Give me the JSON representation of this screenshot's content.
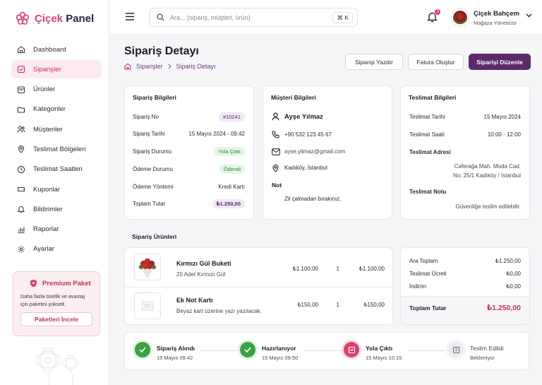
{
  "brand": {
    "name_part1": "Çiçek",
    "name_part2": " Panel",
    "accent": "#d9436b",
    "primary": "#5a2a6b"
  },
  "sidebar": {
    "items": [
      {
        "label": "Dashboard",
        "icon": "home-icon"
      },
      {
        "label": "Siparişler",
        "icon": "orders-icon",
        "active": true
      },
      {
        "label": "Ürünler",
        "icon": "box-icon"
      },
      {
        "label": "Kategoriler",
        "icon": "folder-icon"
      },
      {
        "label": "Müşteriler",
        "icon": "users-icon"
      },
      {
        "label": "Teslimat Bölgeleri",
        "icon": "map-pin-icon"
      },
      {
        "label": "Teslimat Saatleri",
        "icon": "clock-icon"
      },
      {
        "label": "Kuponlar",
        "icon": "ticket-icon"
      },
      {
        "label": "Bildirimler",
        "icon": "bell-icon"
      },
      {
        "label": "Raporlar",
        "icon": "chart-icon"
      },
      {
        "label": "Ayarlar",
        "icon": "gear-icon"
      }
    ],
    "promo": {
      "title": "Premium Paket",
      "text": "Daha fazla özellik ve avantaj için paketini yükselt.",
      "button": "Paketleri İncele"
    }
  },
  "topbar": {
    "search_placeholder": "Ara... (sipariş, müşteri, ürün)",
    "shortcut": "⌘ K",
    "notification_count": "3",
    "user_name": "Çiçek Bahçem",
    "user_role": "Mağaza Yöneticisi"
  },
  "page": {
    "title": "Sipariş Detayı",
    "breadcrumb": {
      "parent": "Siparişler",
      "current": "Sipariş Detayı"
    },
    "actions": {
      "print": "Siparişi Yazdır",
      "invoice": "Fatura Oluştur",
      "edit": "Siparişi Düzenle"
    }
  },
  "order_info": {
    "title": "Sipariş Bilgileri",
    "rows": [
      {
        "label": "Sipariş No",
        "value": "#10241"
      },
      {
        "label": "Sipariş Tarihi",
        "value": "15 Mayıs 2024 - 09:42"
      },
      {
        "label": "Sipariş Durumu",
        "value": "Yola Çıktı"
      },
      {
        "label": "Ödeme Durumu",
        "value": "Ödendi"
      },
      {
        "label": "Ödeme Yöntemi",
        "value": "Kredi Kartı"
      },
      {
        "label": "Toplam Tutar",
        "value": "₺1.250,00"
      }
    ]
  },
  "customer_info": {
    "title": "Müşteri Bilgileri",
    "name": "Ayşe Yılmaz",
    "phone": "+90 532 123 45 67",
    "email": "ayse.yilmaz@gmail.com",
    "location": "Kadıköy, İstanbul",
    "note_label": "Not",
    "note": "Zil çalmadan bırakınız."
  },
  "delivery_info": {
    "title": "Teslimat Bilgileri",
    "date_label": "Teslimat Tarihi",
    "date": "15 Mayıs 2024",
    "time_label": "Teslimat Saati",
    "time": "10:00 - 12:00",
    "address_label": "Teslimat Adresi",
    "address_line1": "Caferağa Mah. Moda Cad.",
    "address_line2": "No: 25/1 Kadıköy / İstanbul",
    "note_label": "Teslimat Notu",
    "note": "Güvenliğe teslim edilebilir."
  },
  "products": {
    "title": "Sipariş Ürünleri",
    "items": [
      {
        "name": "Kırmızı Gül Buketi",
        "desc": "20 Adet Kırmızı Gül",
        "price": "₺1.100,00",
        "qty": "1",
        "total": "₺1.100,00"
      },
      {
        "name": "Ek Not Kartı",
        "desc": "Beyaz kart üzerine yazı yazılacak.",
        "price": "₺150,00",
        "qty": "1",
        "total": "₺150,00"
      }
    ]
  },
  "summary": {
    "subtotal_label": "Ara Toplam",
    "subtotal": "₺1.250,00",
    "shipping_label": "Teslimat Ücreti",
    "shipping": "₺0,00",
    "discount_label": "İndirim",
    "discount": "₺0,00",
    "total_label": "Toplam Tutar",
    "total": "₺1.250,00"
  },
  "timeline": [
    {
      "title": "Sipariş Alındı",
      "sub": "15 Mayıs 09:42",
      "state": "done"
    },
    {
      "title": "Hazırlanıyor",
      "sub": "15 Mayıs 09:50",
      "state": "done"
    },
    {
      "title": "Yola Çıktı",
      "sub": "15 Mayıs 10:15",
      "state": "current"
    },
    {
      "title": "Teslim Edildi",
      "sub": "Bekleniyor",
      "state": "pending"
    }
  ]
}
